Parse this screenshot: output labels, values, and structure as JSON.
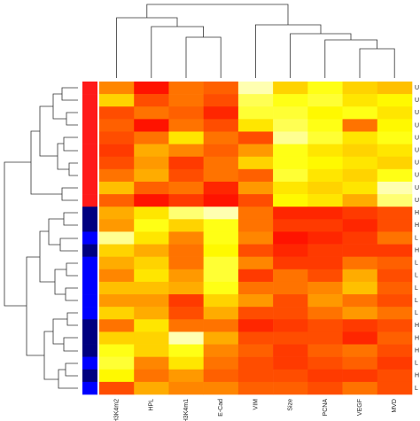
{
  "chart_data": {
    "type": "heatmap",
    "columns": [
      "H3K4m2",
      "HPL",
      "H3K4m1",
      "E-Cad",
      "VIM",
      "Size",
      "PCNA",
      "VEGF",
      "MVD"
    ],
    "row_labels": [
      "U",
      "U",
      "U",
      "U",
      "U",
      "U",
      "U",
      "U",
      "U",
      "U",
      "H",
      "H",
      "L",
      "H",
      "L",
      "L",
      "L",
      "L",
      "L",
      "H",
      "H",
      "H",
      "L",
      "H",
      "L"
    ],
    "label_colors": {
      "U": "#ff1a1a",
      "H": "#000080",
      "L": "#0000ff"
    },
    "colormap": [
      "#ff0000",
      "#ff8000",
      "#ffff00",
      "#ffffd0"
    ],
    "values": [
      [
        0.35,
        0.05,
        0.3,
        0.25,
        0.95,
        0.55,
        0.7,
        0.55,
        0.5
      ],
      [
        0.55,
        0.2,
        0.3,
        0.2,
        0.8,
        0.7,
        0.75,
        0.6,
        0.65
      ],
      [
        0.2,
        0.3,
        0.25,
        0.1,
        0.75,
        0.75,
        0.65,
        0.7,
        0.6
      ],
      [
        0.25,
        0.05,
        0.3,
        0.2,
        0.6,
        0.8,
        0.7,
        0.3,
        0.65
      ],
      [
        0.2,
        0.3,
        0.6,
        0.3,
        0.2,
        0.9,
        0.75,
        0.6,
        0.7
      ],
      [
        0.15,
        0.45,
        0.35,
        0.25,
        0.4,
        0.7,
        0.6,
        0.55,
        0.6
      ],
      [
        0.2,
        0.4,
        0.15,
        0.3,
        0.55,
        0.7,
        0.65,
        0.6,
        0.55
      ],
      [
        0.3,
        0.45,
        0.2,
        0.3,
        0.25,
        0.75,
        0.6,
        0.55,
        0.7
      ],
      [
        0.5,
        0.25,
        0.3,
        0.1,
        0.4,
        0.6,
        0.55,
        0.6,
        0.95
      ],
      [
        0.25,
        0.05,
        0.15,
        0.05,
        0.2,
        0.65,
        0.6,
        0.45,
        0.85
      ],
      [
        0.45,
        0.6,
        0.85,
        0.95,
        0.3,
        0.1,
        0.1,
        0.15,
        0.2
      ],
      [
        0.4,
        0.7,
        0.55,
        0.7,
        0.3,
        0.15,
        0.15,
        0.1,
        0.2
      ],
      [
        0.9,
        0.6,
        0.35,
        0.7,
        0.35,
        0.05,
        0.1,
        0.15,
        0.3
      ],
      [
        0.55,
        0.45,
        0.3,
        0.65,
        0.2,
        0.1,
        0.15,
        0.15,
        0.15
      ],
      [
        0.45,
        0.55,
        0.3,
        0.75,
        0.35,
        0.15,
        0.15,
        0.3,
        0.25
      ],
      [
        0.35,
        0.6,
        0.4,
        0.75,
        0.15,
        0.3,
        0.2,
        0.45,
        0.2
      ],
      [
        0.5,
        0.5,
        0.45,
        0.7,
        0.3,
        0.3,
        0.35,
        0.5,
        0.25
      ],
      [
        0.4,
        0.4,
        0.15,
        0.55,
        0.4,
        0.2,
        0.4,
        0.3,
        0.2
      ],
      [
        0.55,
        0.45,
        0.2,
        0.45,
        0.2,
        0.2,
        0.3,
        0.4,
        0.3
      ],
      [
        0.3,
        0.6,
        0.3,
        0.3,
        0.1,
        0.15,
        0.2,
        0.15,
        0.2
      ],
      [
        0.55,
        0.55,
        0.95,
        0.45,
        0.2,
        0.2,
        0.2,
        0.1,
        0.25
      ],
      [
        0.7,
        0.55,
        0.7,
        0.35,
        0.25,
        0.15,
        0.25,
        0.3,
        0.2
      ],
      [
        0.75,
        0.35,
        0.6,
        0.3,
        0.2,
        0.15,
        0.2,
        0.25,
        0.15
      ],
      [
        0.65,
        0.3,
        0.4,
        0.25,
        0.2,
        0.2,
        0.15,
        0.15,
        0.2
      ],
      [
        0.2,
        0.45,
        0.35,
        0.35,
        0.25,
        0.25,
        0.2,
        0.3,
        0.2
      ]
    ]
  }
}
